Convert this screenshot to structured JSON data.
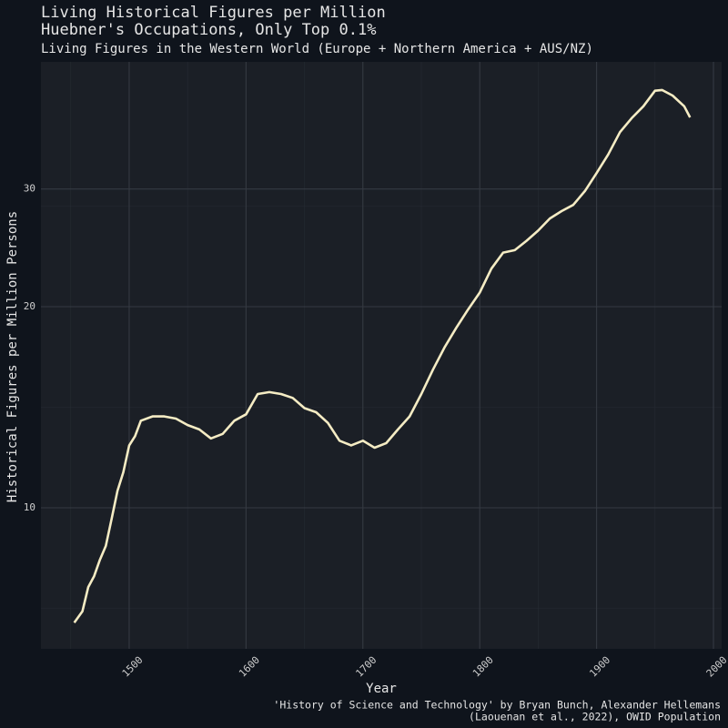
{
  "chart_data": {
    "type": "line",
    "title": "Living Historical Figures per Million",
    "subtitle": "Huebner's Occupations, Only Top 0.1%",
    "description": "Living Figures in the Western World (Europe + Northern America + AUS/NZ)",
    "x_label": "Year",
    "y_label": "Historical Figures per Million Persons",
    "caption": [
      "'History of Science and Technology' by Bryan Bunch, Alexander Hellemans",
      "(Laouenan et al., 2022), OWID Population"
    ],
    "log_y": true,
    "grid": true,
    "xlim": [
      1424.5,
      2007
    ],
    "ylim": [
      6.15,
      46.5
    ],
    "xticks": [
      1500,
      1600,
      1700,
      1800,
      1900,
      2000
    ],
    "yticks": [
      10,
      20,
      30
    ],
    "x": [
      1453,
      1460,
      1465,
      1470,
      1475,
      1480,
      1485,
      1490,
      1495,
      1500,
      1505,
      1510,
      1520,
      1530,
      1540,
      1550,
      1560,
      1570,
      1580,
      1590,
      1600,
      1610,
      1620,
      1630,
      1640,
      1650,
      1660,
      1670,
      1680,
      1690,
      1700,
      1710,
      1720,
      1730,
      1740,
      1750,
      1760,
      1770,
      1780,
      1790,
      1800,
      1810,
      1820,
      1830,
      1840,
      1850,
      1860,
      1870,
      1880,
      1890,
      1900,
      1910,
      1920,
      1930,
      1940,
      1950,
      1956,
      1965,
      1975,
      1980
    ],
    "series": [
      {
        "name": "Western World",
        "color": "#f5ecc4",
        "values": [
          6.73,
          7.0,
          7.61,
          7.9,
          8.36,
          8.77,
          9.63,
          10.6,
          11.3,
          12.4,
          12.8,
          13.5,
          13.7,
          13.7,
          13.6,
          13.3,
          13.1,
          12.7,
          12.9,
          13.5,
          13.8,
          14.8,
          14.9,
          14.8,
          14.6,
          14.1,
          13.9,
          13.4,
          12.6,
          12.4,
          12.6,
          12.3,
          12.5,
          13.1,
          13.7,
          14.8,
          16.1,
          17.4,
          18.6,
          19.8,
          21.0,
          22.8,
          24.1,
          24.3,
          25.1,
          26.0,
          27.1,
          27.8,
          28.4,
          29.8,
          31.7,
          33.8,
          36.5,
          38.3,
          39.9,
          42.1,
          42.2,
          41.4,
          39.9,
          38.4
        ]
      }
    ]
  }
}
